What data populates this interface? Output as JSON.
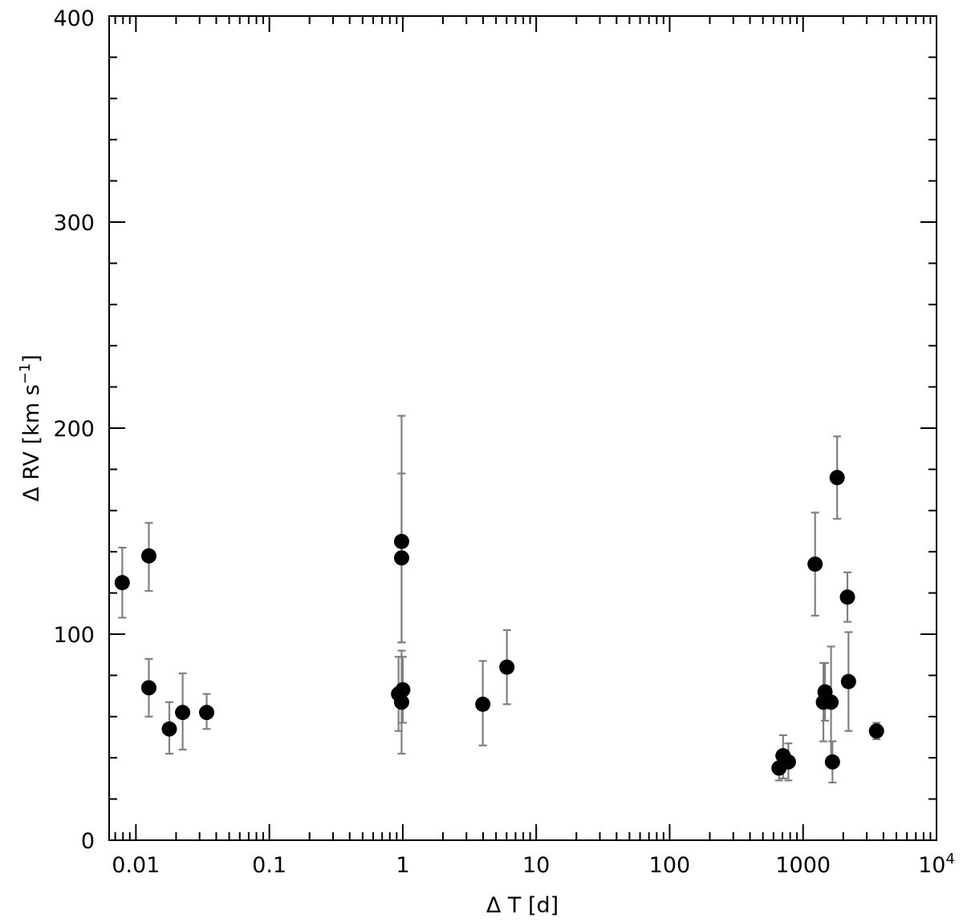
{
  "chart_data": {
    "type": "scatter",
    "title": "",
    "xlabel": "Δ T  [d]",
    "ylabel_prefix": "Δ RV  [km s",
    "ylabel_sup": "−1",
    "ylabel_suffix": "]",
    "xscale": "log",
    "xlim": [
      0.0063,
      10000
    ],
    "ylim": [
      0,
      400
    ],
    "grid": false,
    "legend": "none",
    "x_ticks": [
      {
        "value": 0.01,
        "label": "0.01"
      },
      {
        "value": 0.1,
        "label": "0.1"
      },
      {
        "value": 1,
        "label": "1"
      },
      {
        "value": 10,
        "label": "10"
      },
      {
        "value": 100,
        "label": "100"
      },
      {
        "value": 1000,
        "label": "1000"
      },
      {
        "value": 10000,
        "label": "10",
        "sup": "4"
      }
    ],
    "y_ticks": [
      {
        "value": 0,
        "label": "0"
      },
      {
        "value": 100,
        "label": "100"
      },
      {
        "value": 200,
        "label": "200"
      },
      {
        "value": 300,
        "label": "300"
      },
      {
        "value": 400,
        "label": "400"
      }
    ],
    "marker_color": "#000000",
    "errorbar_color": "#808080",
    "points": [
      {
        "x": 0.0079,
        "y": 125,
        "err_low": 17,
        "err_high": 17
      },
      {
        "x": 0.0125,
        "y": 138,
        "err_low": 17,
        "err_high": 16
      },
      {
        "x": 0.0125,
        "y": 74,
        "err_low": 14,
        "err_high": 14
      },
      {
        "x": 0.0178,
        "y": 54,
        "err_low": 12,
        "err_high": 13
      },
      {
        "x": 0.0224,
        "y": 62,
        "err_low": 18,
        "err_high": 19
      },
      {
        "x": 0.0339,
        "y": 62,
        "err_low": 8,
        "err_high": 9
      },
      {
        "x": 0.93,
        "y": 71,
        "err_low": 18,
        "err_high": 18
      },
      {
        "x": 0.98,
        "y": 145,
        "err_low": 49,
        "err_high": 61
      },
      {
        "x": 0.98,
        "y": 137,
        "err_low": 41,
        "err_high": 41
      },
      {
        "x": 0.98,
        "y": 67,
        "err_low": 25,
        "err_high": 25
      },
      {
        "x": 1.0,
        "y": 73,
        "err_low": 16,
        "err_high": 16
      },
      {
        "x": 3.98,
        "y": 66,
        "err_low": 20,
        "err_high": 21
      },
      {
        "x": 6.03,
        "y": 84,
        "err_low": 18,
        "err_high": 18
      },
      {
        "x": 660,
        "y": 35,
        "err_low": 6,
        "err_high": 6
      },
      {
        "x": 708,
        "y": 41,
        "err_low": 11,
        "err_high": 10
      },
      {
        "x": 776,
        "y": 38,
        "err_low": 9,
        "err_high": 9
      },
      {
        "x": 1230,
        "y": 134,
        "err_low": 25,
        "err_high": 25
      },
      {
        "x": 1420,
        "y": 67,
        "err_low": 19,
        "err_high": 19
      },
      {
        "x": 1460,
        "y": 72,
        "err_low": 14,
        "err_high": 14
      },
      {
        "x": 1620,
        "y": 67,
        "err_low": 27,
        "err_high": 27
      },
      {
        "x": 1660,
        "y": 38,
        "err_low": 10,
        "err_high": 10
      },
      {
        "x": 1800,
        "y": 176,
        "err_low": 20,
        "err_high": 20
      },
      {
        "x": 2150,
        "y": 118,
        "err_low": 12,
        "err_high": 12
      },
      {
        "x": 2190,
        "y": 77,
        "err_low": 24,
        "err_high": 24
      },
      {
        "x": 3550,
        "y": 53,
        "err_low": 4,
        "err_high": 4
      }
    ]
  }
}
